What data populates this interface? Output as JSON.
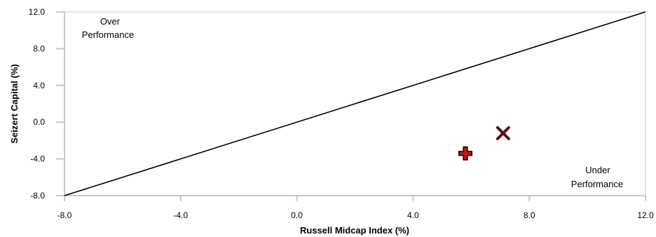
{
  "chart_data": {
    "type": "scatter",
    "title": "",
    "xlabel": "Russell Midcap Index (%)",
    "ylabel": "Seizert Capital  (%)",
    "xlim": [
      -8.0,
      12.0
    ],
    "ylim": [
      -8.0,
      12.0
    ],
    "x_ticks": [
      "-8.0",
      "-4.0",
      "0.0",
      "4.0",
      "8.0",
      "12.0"
    ],
    "y_ticks": [
      "-8.0",
      "-4.0",
      "0.0",
      "4.0",
      "8.0",
      "12.0"
    ],
    "grid": false,
    "reference_line": {
      "from": [
        -8.0,
        -8.0
      ],
      "to": [
        12.0,
        12.0
      ]
    },
    "points": [
      {
        "marker": "x-icon",
        "x": 7.1,
        "y": -1.2,
        "color": "#5a1212"
      },
      {
        "marker": "plus-icon",
        "x": 5.8,
        "y": -3.4,
        "color": "#c0141a"
      }
    ],
    "annotations": {
      "over": [
        "Over",
        "Performance"
      ],
      "under": [
        "Under",
        "Performance"
      ]
    }
  }
}
